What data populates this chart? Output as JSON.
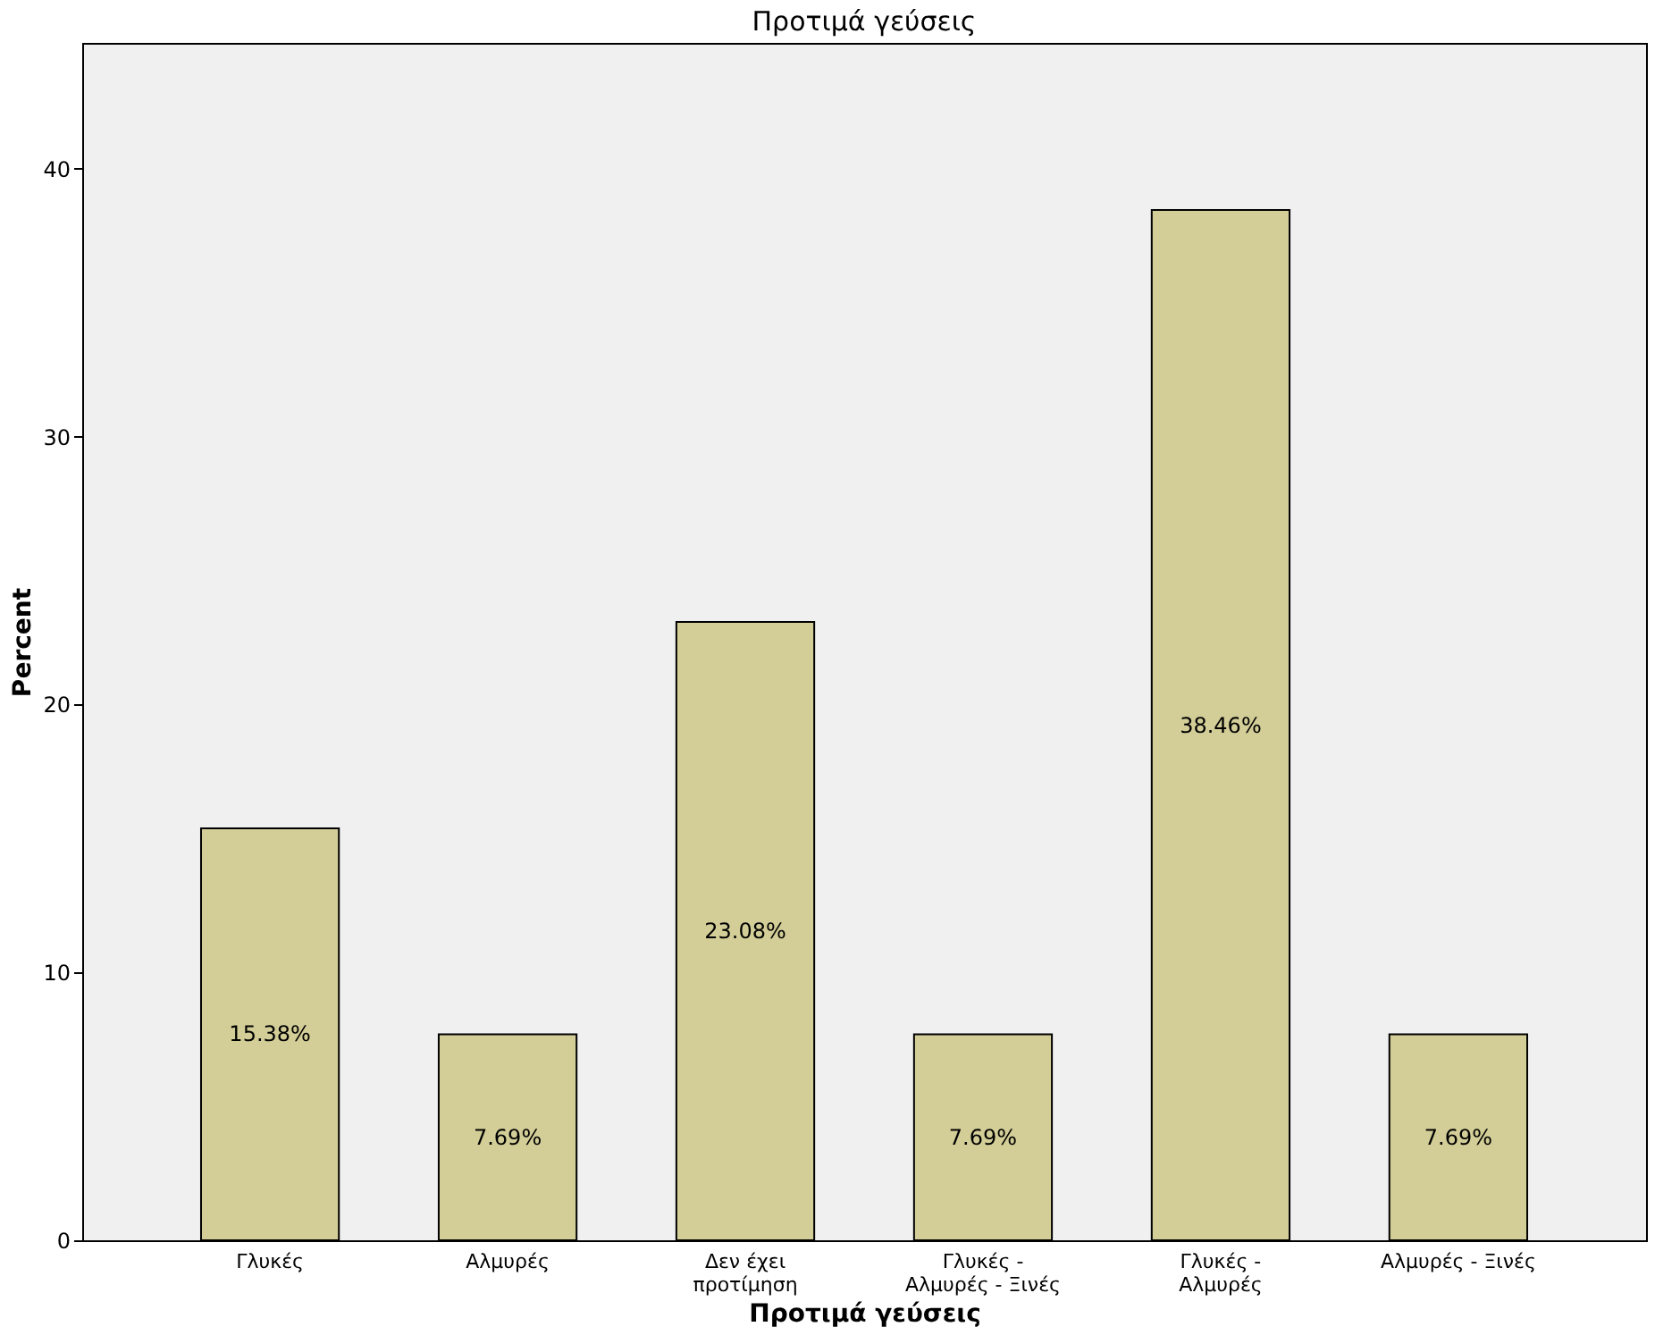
{
  "chart_data": {
    "type": "bar",
    "title": "Προτιμά γεύσεις",
    "xlabel": "Προτιμά γεύσεις",
    "ylabel": "Percent",
    "categories": [
      "Γλυκές",
      "Αλμυρές",
      "Δεν έχει προτίμηση",
      "Γλυκές - Αλμυρές - Ξινές",
      "Γλυκές - Αλμυρές",
      "Αλμυρές - Ξινές"
    ],
    "values": [
      15.38,
      7.69,
      23.08,
      7.69,
      38.46,
      7.69
    ],
    "value_labels": [
      "15.38%",
      "7.69%",
      "23.08%",
      "7.69%",
      "38.46%",
      "7.69%"
    ],
    "color": "#d3ce97",
    "ylim": [
      0,
      44.7
    ],
    "yticks": [
      0,
      10,
      20,
      30,
      40
    ],
    "grid": false
  }
}
